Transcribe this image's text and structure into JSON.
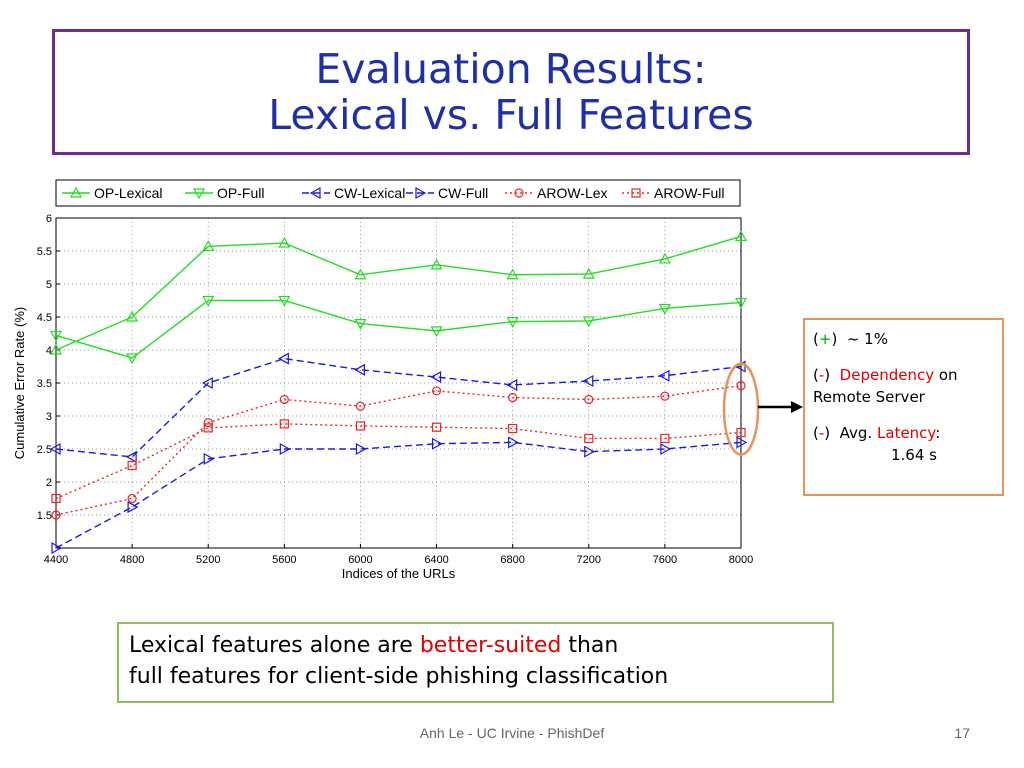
{
  "slide": {
    "title_line1": "Evaluation Results:",
    "title_line2": "Lexical vs. Full Features",
    "footer": "Anh Le - UC Irvine - PhishDef",
    "page_number": "17"
  },
  "callout": {
    "plus_sign": "+",
    "plus_text": "~ 1%",
    "minus_sign": "-",
    "dep_word": "Dependency",
    "dep_rest1": "on",
    "dep_rest2": "Remote Server",
    "lat_prefix": "Avg.",
    "lat_word": "Latency",
    "lat_colon": ":",
    "lat_value": "1.64 s"
  },
  "conclusion": {
    "part1": "Lexical features alone are",
    "highlight": "better-suited",
    "part2": "than",
    "line2": "full features for client-side phishing classification"
  },
  "colors": {
    "green": "#22dd22",
    "blue": "#1a1add",
    "red": "#ee2222",
    "title": "#1f2fa8",
    "orange": "#e8935a"
  },
  "chart_data": {
    "type": "line",
    "xlabel": "Indices of the URLs",
    "ylabel": "Cumulative Error Rate (%)",
    "x": [
      4400,
      4800,
      5200,
      5600,
      6000,
      6400,
      6800,
      7200,
      7600,
      8000
    ],
    "xlim": [
      4400,
      8000
    ],
    "ylim": [
      1,
      6
    ],
    "yticks": [
      1.5,
      2,
      2.5,
      3,
      3.5,
      4,
      4.5,
      5,
      5.5,
      6
    ],
    "grid": true,
    "legend_position": "top",
    "series": [
      {
        "name": "OP-Lexical",
        "color": "#22dd22",
        "dash": "solid",
        "marker": "triangle-up",
        "values": [
          4.0,
          4.5,
          5.57,
          5.62,
          5.14,
          5.29,
          5.14,
          5.15,
          5.38,
          5.72
        ]
      },
      {
        "name": "OP-Full",
        "color": "#22dd22",
        "dash": "solid",
        "marker": "triangle-down",
        "values": [
          4.22,
          3.88,
          4.75,
          4.75,
          4.4,
          4.29,
          4.43,
          4.44,
          4.63,
          4.72
        ]
      },
      {
        "name": "CW-Lexical",
        "color": "#1a1add",
        "dash": "dashed",
        "marker": "triangle-left",
        "values": [
          2.5,
          2.38,
          3.5,
          3.87,
          3.7,
          3.59,
          3.47,
          3.53,
          3.61,
          3.75
        ]
      },
      {
        "name": "CW-Full",
        "color": "#1a1add",
        "dash": "dashed",
        "marker": "triangle-right",
        "values": [
          1.0,
          1.62,
          2.35,
          2.5,
          2.5,
          2.58,
          2.6,
          2.46,
          2.5,
          2.6
        ]
      },
      {
        "name": "AROW-Lex",
        "color": "#ee2222",
        "dash": "dotted",
        "marker": "circle",
        "values": [
          1.5,
          1.75,
          2.9,
          3.25,
          3.15,
          3.38,
          3.28,
          3.25,
          3.3,
          3.46
        ]
      },
      {
        "name": "AROW-Full",
        "color": "#ee2222",
        "dash": "dotted",
        "marker": "square",
        "values": [
          1.75,
          2.25,
          2.82,
          2.88,
          2.85,
          2.83,
          2.81,
          2.66,
          2.66,
          2.75
        ]
      }
    ]
  }
}
